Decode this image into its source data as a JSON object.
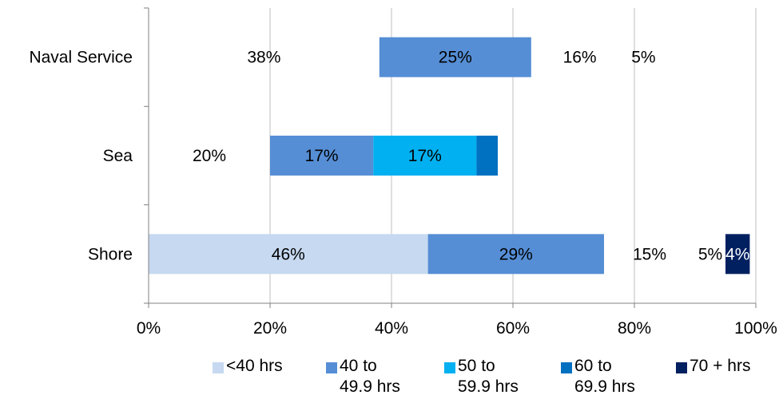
{
  "chart_data": {
    "type": "bar",
    "orientation": "horizontal",
    "stacked": true,
    "categories": [
      "Naval Service",
      "Sea",
      "Shore"
    ],
    "series": [
      {
        "name": "<40 hrs",
        "color": "#c6d9f0",
        "values": [
          38,
          20,
          46
        ],
        "labels": [
          "38%",
          "20%",
          "46%"
        ],
        "visible": [
          false,
          false,
          true
        ]
      },
      {
        "name": "40 to 49.9 hrs",
        "color": "#558ed5",
        "values": [
          25,
          17,
          29
        ],
        "labels": [
          "25%",
          "17%",
          "29%"
        ],
        "visible": [
          true,
          true,
          true
        ]
      },
      {
        "name": "50 to 59.9 hrs",
        "color": "#00b0f0",
        "values": [
          16,
          17,
          15
        ],
        "labels": [
          "16%",
          "17%",
          "15%"
        ],
        "visible": [
          false,
          true,
          false
        ]
      },
      {
        "name": "60 to 69.9 hrs",
        "color": "#0070c0",
        "values": [
          5,
          3.5,
          5
        ],
        "labels": [
          "5%",
          "",
          "5%"
        ],
        "visible": [
          false,
          true,
          false
        ]
      },
      {
        "name": "70 + hrs",
        "color": "#002060",
        "values": [
          0,
          0,
          4
        ],
        "labels": [
          "",
          "",
          "4%"
        ],
        "visible": [
          false,
          false,
          true
        ]
      }
    ],
    "xlim": [
      0,
      100
    ],
    "x_ticks": [
      "0%",
      "20%",
      "40%",
      "60%",
      "80%",
      "100%"
    ],
    "grid": true,
    "legend_position": "bottom"
  },
  "legend": [
    {
      "line1": "<40 hrs",
      "line2": "",
      "color": "#c6d9f0"
    },
    {
      "line1": "40 to",
      "line2": "49.9 hrs",
      "color": "#558ed5"
    },
    {
      "line1": "50 to",
      "line2": "59.9 hrs",
      "color": "#00b0f0"
    },
    {
      "line1": "60 to",
      "line2": "69.9 hrs",
      "color": "#0070c0"
    },
    {
      "line1": "70 + hrs",
      "line2": "",
      "color": "#002060"
    }
  ]
}
